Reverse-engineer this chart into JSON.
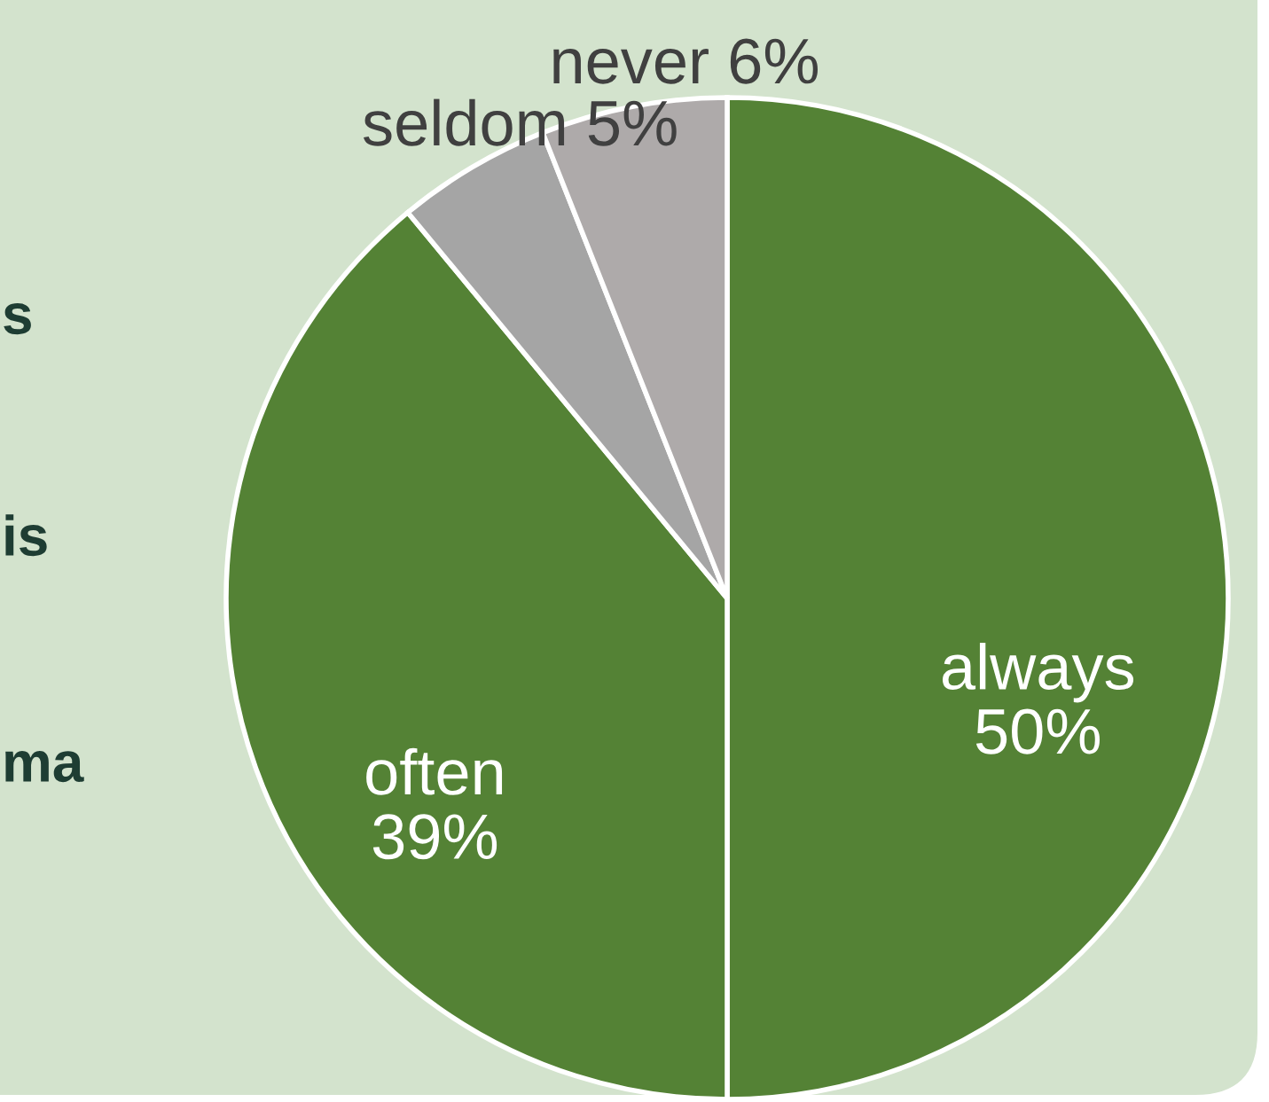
{
  "chart_data": {
    "type": "pie",
    "categories": [
      "always",
      "often",
      "seldom",
      "never"
    ],
    "values": [
      50,
      39,
      5,
      6
    ],
    "value_labels": [
      "50%",
      "39%",
      "5%",
      "6%"
    ],
    "colors": [
      "#548235",
      "#548235",
      "#a5a5a5",
      "#aeaaaa"
    ],
    "annotations": [
      "s",
      "is",
      "ma"
    ]
  }
}
